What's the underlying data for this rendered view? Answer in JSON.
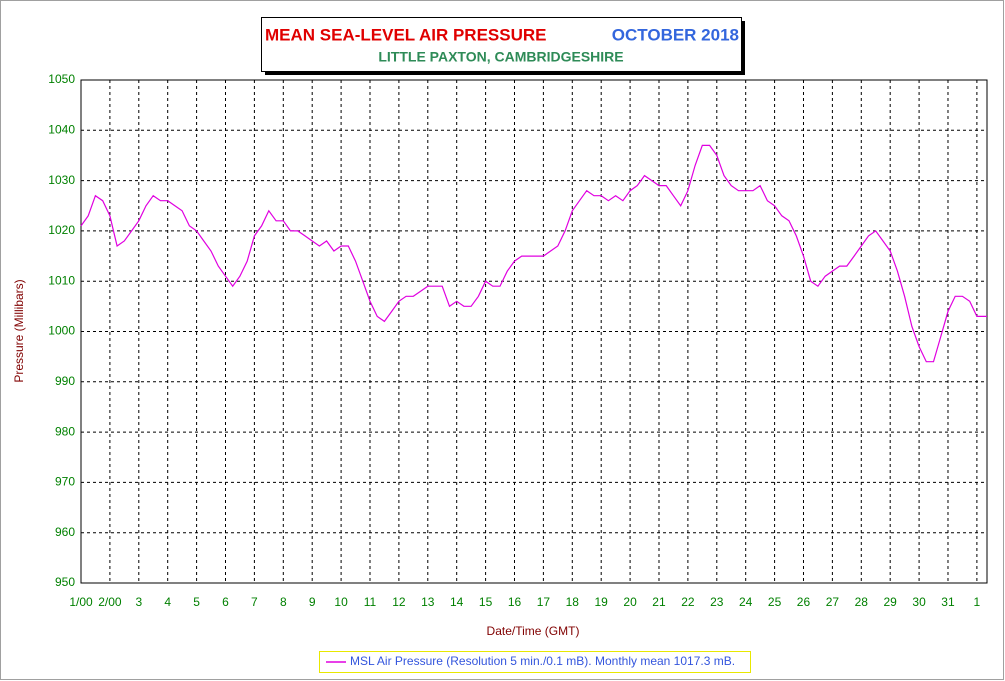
{
  "chart_data": {
    "type": "line",
    "title": "MEAN SEA-LEVEL AIR PRESSURE",
    "period": "OCTOBER 2018",
    "subtitle": "LITTLE PAXTON, CAMBRIDGESHIRE",
    "x_label": "Date/Time (GMT)",
    "y_label": "Pressure (Millibars)",
    "grid": true,
    "xlim": [
      1,
      32.35
    ],
    "ylim": [
      950,
      1050
    ],
    "yticks": [
      950,
      960,
      970,
      980,
      990,
      1000,
      1010,
      1020,
      1030,
      1040,
      1050
    ],
    "xticks": [
      {
        "value": 1,
        "label": "1/00"
      },
      {
        "value": 2,
        "label": "2/00"
      },
      3,
      4,
      5,
      6,
      7,
      8,
      9,
      10,
      11,
      12,
      13,
      14,
      15,
      16,
      17,
      18,
      19,
      20,
      21,
      22,
      23,
      24,
      25,
      26,
      27,
      28,
      29,
      30,
      31,
      {
        "value": 32,
        "label": "1"
      }
    ],
    "x": [
      1,
      1.25,
      1.5,
      1.75,
      2,
      2.25,
      2.5,
      2.75,
      3,
      3.25,
      3.5,
      3.75,
      4,
      4.25,
      4.5,
      4.75,
      5,
      5.25,
      5.5,
      5.75,
      6,
      6.25,
      6.5,
      6.75,
      7,
      7.25,
      7.5,
      7.75,
      8,
      8.25,
      8.5,
      8.75,
      9,
      9.25,
      9.5,
      9.75,
      10,
      10.25,
      10.5,
      10.75,
      11,
      11.25,
      11.5,
      11.75,
      12,
      12.25,
      12.5,
      12.75,
      13,
      13.25,
      13.5,
      13.75,
      14,
      14.25,
      14.5,
      14.75,
      15,
      15.25,
      15.5,
      15.75,
      16,
      16.25,
      16.5,
      16.75,
      17,
      17.25,
      17.5,
      17.75,
      18,
      18.25,
      18.5,
      18.75,
      19,
      19.25,
      19.5,
      19.75,
      20,
      20.25,
      20.5,
      20.75,
      21,
      21.25,
      21.5,
      21.75,
      22,
      22.25,
      22.5,
      22.75,
      23,
      23.25,
      23.5,
      23.75,
      24,
      24.25,
      24.5,
      24.75,
      25,
      25.25,
      25.5,
      25.75,
      26,
      26.25,
      26.5,
      26.75,
      27,
      27.25,
      27.5,
      27.75,
      28,
      28.25,
      28.5,
      28.75,
      29,
      29.25,
      29.5,
      29.75,
      30,
      30.25,
      30.5,
      30.75,
      31,
      31.25,
      31.5,
      31.75,
      32,
      32.25,
      32.35
    ],
    "series": [
      {
        "name": "MSL Air Pressure (Resolution 5 min./0.1 mB). Monthly mean 1017.3 mB.",
        "color": "#e000e0",
        "values": [
          1021,
          1023,
          1027,
          1026,
          1023,
          1017,
          1018,
          1020,
          1022,
          1025,
          1027,
          1026,
          1026,
          1025,
          1024,
          1021,
          1020,
          1018,
          1016,
          1013,
          1011,
          1009,
          1011,
          1014,
          1019,
          1021,
          1024,
          1022,
          1022,
          1020,
          1020,
          1019,
          1018,
          1017,
          1018,
          1016,
          1017,
          1017,
          1014,
          1010,
          1006,
          1003,
          1002,
          1004,
          1006,
          1007,
          1007,
          1008,
          1009,
          1009,
          1009,
          1005,
          1006,
          1005,
          1005,
          1007,
          1010,
          1009,
          1009,
          1012,
          1014,
          1015,
          1015,
          1015,
          1015,
          1016,
          1017,
          1020,
          1024,
          1026,
          1028,
          1027,
          1027,
          1026,
          1027,
          1026,
          1028,
          1029,
          1031,
          1030,
          1029,
          1029,
          1027,
          1025,
          1028,
          1033,
          1037,
          1037,
          1035,
          1031,
          1029,
          1028,
          1028,
          1028,
          1029,
          1026,
          1025,
          1023,
          1022,
          1019,
          1015,
          1010,
          1009,
          1011,
          1012,
          1013,
          1013,
          1015,
          1017,
          1019,
          1020,
          1018,
          1016,
          1012,
          1007,
          1001,
          997,
          994,
          994,
          999,
          1004,
          1007,
          1007,
          1006,
          1003,
          1003,
          1003
        ]
      }
    ]
  }
}
